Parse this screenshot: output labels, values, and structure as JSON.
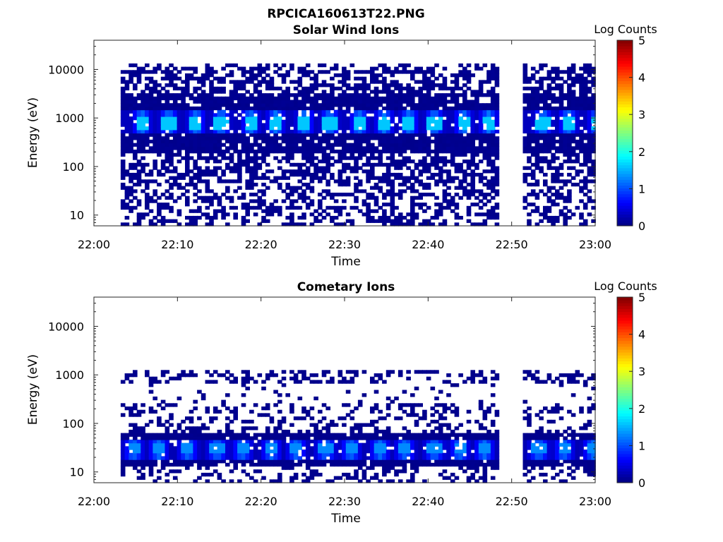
{
  "figure": {
    "title": "RPCICA160613T22.PNG"
  },
  "chart_data": [
    {
      "type": "heatmap",
      "title": "Solar Wind Ions",
      "xlabel": "Time",
      "ylabel": "Energy (eV)",
      "y_scale": "log",
      "ylim": [
        6,
        40000
      ],
      "xlim": [
        "22:00",
        "23:00"
      ],
      "x_tick_labels": [
        "22:00",
        "22:10",
        "22:20",
        "22:30",
        "22:40",
        "22:50",
        "23:00"
      ],
      "y_tick_labels": [
        "10",
        "100",
        "1000",
        "10000"
      ],
      "colorbar": {
        "label": "Log Counts",
        "min": 0,
        "max": 5,
        "ticks": [
          "0",
          "1",
          "2",
          "3",
          "4",
          "5"
        ],
        "colormap": "jet"
      },
      "data_gaps": [
        [
          "22:48",
          "22:51"
        ]
      ],
      "peak_energy_eV": 750,
      "peak_times": [
        "22:05.5",
        "22:08.7",
        "22:12",
        "22:15",
        "22:18.5",
        "22:21.5",
        "22:25",
        "22:28",
        "22:31.5",
        "22:34.5",
        "22:37.5",
        "22:40.5",
        "22:44",
        "22:47",
        "22:53.5",
        "22:56.5",
        "23:00"
      ],
      "peak_log_counts": 1.6,
      "background_log_counts": 0.05,
      "coverage_energy_range_eV": [
        6,
        12000
      ]
    },
    {
      "type": "heatmap",
      "title": "Cometary Ions",
      "xlabel": "Time",
      "ylabel": "Energy (eV)",
      "y_scale": "log",
      "ylim": [
        6,
        40000
      ],
      "xlim": [
        "22:00",
        "23:00"
      ],
      "x_tick_labels": [
        "22:00",
        "22:10",
        "22:20",
        "22:30",
        "22:40",
        "22:50",
        "23:00"
      ],
      "y_tick_labels": [
        "10",
        "100",
        "1000",
        "10000"
      ],
      "colorbar": {
        "label": "Log Counts",
        "min": 0,
        "max": 5,
        "ticks": [
          "0",
          "1",
          "2",
          "3",
          "4",
          "5"
        ],
        "colormap": "jet"
      },
      "data_gaps": [
        [
          "22:48",
          "22:51"
        ]
      ],
      "peak_energy_eV": 28,
      "peak_times": [
        "22:04.5",
        "22:07.5",
        "22:11",
        "22:14.5",
        "22:17.5",
        "22:21",
        "22:24",
        "22:27.5",
        "22:30.5",
        "22:34",
        "22:37",
        "22:40.5",
        "22:43.5",
        "22:46.5",
        "22:53",
        "22:56",
        "22:59.5"
      ],
      "peak_log_counts": 1.3,
      "secondary_energy_eV": 900,
      "background_log_counts": 0.05,
      "coverage_energy_range_eV": [
        6,
        1200
      ]
    }
  ]
}
